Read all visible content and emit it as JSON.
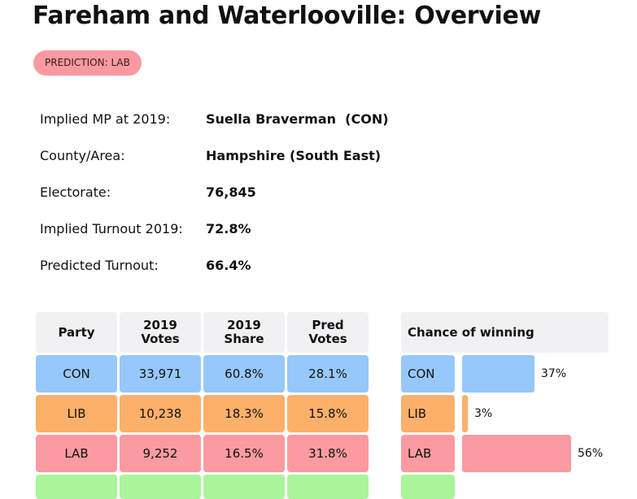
{
  "title": "Fareham and Waterlooville: Overview",
  "prediction_badge": "PREDICTION: LAB",
  "info": {
    "implied_mp_label": "Implied MP at 2019:",
    "implied_mp_value": "Suella Braverman  (CON)",
    "county_label": "County/Area:",
    "county_value": "Hampshire (South East)",
    "electorate_label": "Electorate:",
    "electorate_value": "76,845",
    "implied_turnout_label": "Implied Turnout 2019:",
    "implied_turnout_value": "72.8%",
    "predicted_turnout_label": "Predicted Turnout:",
    "predicted_turnout_value": "66.4%"
  },
  "results_table": {
    "headers": {
      "party": "Party",
      "votes_line1": "2019",
      "votes_line2": "Votes",
      "share_line1": "2019",
      "share_line2": "Share",
      "pred_line1": "Pred",
      "pred_line2": "Votes"
    },
    "rows": [
      {
        "party": "CON",
        "votes": "33,971",
        "share": "60.8%",
        "pred": "28.1%"
      },
      {
        "party": "LIB",
        "votes": "10,238",
        "share": "18.3%",
        "pred": "15.8%"
      },
      {
        "party": "LAB",
        "votes": "9,252",
        "share": "16.5%",
        "pred": "31.8%"
      }
    ]
  },
  "chance": {
    "header": "Chance of winning",
    "rows": [
      {
        "party": "CON",
        "value": 37,
        "label": "37%"
      },
      {
        "party": "LIB",
        "value": 3,
        "label": "3%"
      },
      {
        "party": "LAB",
        "value": 56,
        "label": "56%"
      }
    ]
  },
  "colors": {
    "CON": "#97c8fb",
    "LIB": "#fdb06a",
    "LAB": "#fb9ba1",
    "next_row": "#aaf49a",
    "header_bg": "#f1f1f4",
    "badge_bg": "#f99aa0"
  }
}
